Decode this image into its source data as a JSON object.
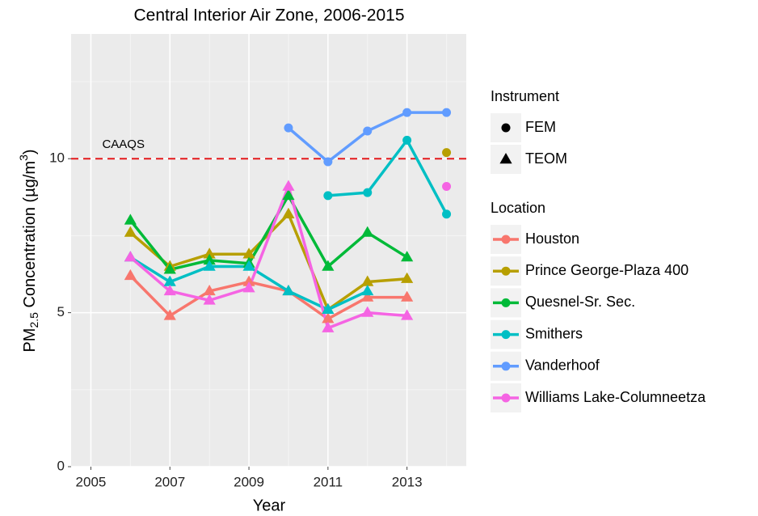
{
  "chart_data": {
    "type": "line",
    "title": "Central Interior Air Zone, 2006-2015",
    "xlabel": "Year",
    "ylabel": {
      "main": "PM",
      "sub": "2.5",
      "text": " Concentration (µg/m",
      "sup": "3",
      "end": ")"
    },
    "x": [
      2006,
      2007,
      2008,
      2009,
      2010,
      2011,
      2012,
      2013,
      2014
    ],
    "xlim": [
      2004.5,
      2014.5
    ],
    "xticks": [
      2005,
      2007,
      2009,
      2011,
      2013
    ],
    "ylim": [
      0,
      14.05
    ],
    "yticks": [
      0,
      5,
      10
    ],
    "grid": true,
    "reference_line": {
      "value": 10,
      "label": "CAAQS",
      "color": "#e41a1c"
    },
    "instrument_legend": {
      "title": "Instrument",
      "labels": [
        "FEM",
        "TEOM"
      ]
    },
    "legend_title": "Location",
    "series": [
      {
        "name": "Houston",
        "color": "#F8766D",
        "values": [
          6.2,
          4.9,
          5.7,
          6.0,
          5.7,
          4.8,
          5.5,
          5.5,
          null
        ],
        "fem": [
          null,
          null,
          null,
          null,
          null,
          null,
          null,
          null,
          null
        ]
      },
      {
        "name": "Prince George-Plaza 400",
        "color": "#B79F00",
        "values": [
          7.6,
          6.5,
          6.9,
          6.9,
          8.2,
          5.1,
          6.0,
          6.1,
          null
        ],
        "fem": [
          null,
          null,
          null,
          null,
          null,
          null,
          null,
          null,
          10.2
        ]
      },
      {
        "name": "Quesnel-Sr. Sec.",
        "color": "#00BA38",
        "values": [
          8.0,
          6.4,
          6.7,
          6.6,
          8.8,
          6.5,
          7.6,
          6.8,
          null
        ],
        "fem": [
          null,
          null,
          null,
          null,
          null,
          null,
          null,
          null,
          null
        ]
      },
      {
        "name": "Smithers",
        "color": "#00BFC4",
        "values": [
          6.8,
          6.0,
          6.5,
          6.5,
          5.7,
          5.1,
          5.7,
          null,
          null
        ],
        "fem": [
          null,
          null,
          null,
          null,
          null,
          8.8,
          8.9,
          10.6,
          8.2
        ]
      },
      {
        "name": "Vanderhoof",
        "color": "#619CFF",
        "values": [
          null,
          null,
          null,
          null,
          null,
          null,
          null,
          null,
          null
        ],
        "fem": [
          null,
          null,
          null,
          null,
          11.0,
          9.9,
          10.9,
          11.5,
          11.5
        ]
      },
      {
        "name": "Williams Lake-Columneetza",
        "color": "#F564E3",
        "values": [
          6.8,
          5.7,
          5.4,
          5.8,
          9.1,
          4.5,
          5.0,
          4.9,
          null
        ],
        "fem": [
          null,
          null,
          null,
          null,
          null,
          null,
          null,
          null,
          9.1
        ]
      }
    ]
  }
}
